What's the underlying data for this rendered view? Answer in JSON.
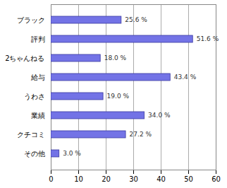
{
  "chart_data": {
    "type": "bar",
    "orientation": "horizontal",
    "categories": [
      "ブラック",
      "評判",
      "2ちゃんねる",
      "給与",
      "うわさ",
      "業績",
      "クチコミ",
      "その他"
    ],
    "values": [
      25.6,
      51.6,
      18.0,
      43.4,
      19.0,
      34.0,
      27.2,
      3.0
    ],
    "value_labels": [
      "25.6 %",
      "51.6 %",
      "18.0 %",
      "43.4 %",
      "19.0 %",
      "34.0 %",
      "27.2 %",
      "3.0 %"
    ],
    "color": "#7373e6",
    "xlim": [
      0,
      60
    ],
    "xticks": [
      0,
      10,
      20,
      30,
      40,
      50,
      60
    ],
    "grid": true,
    "data_labels": true
  }
}
